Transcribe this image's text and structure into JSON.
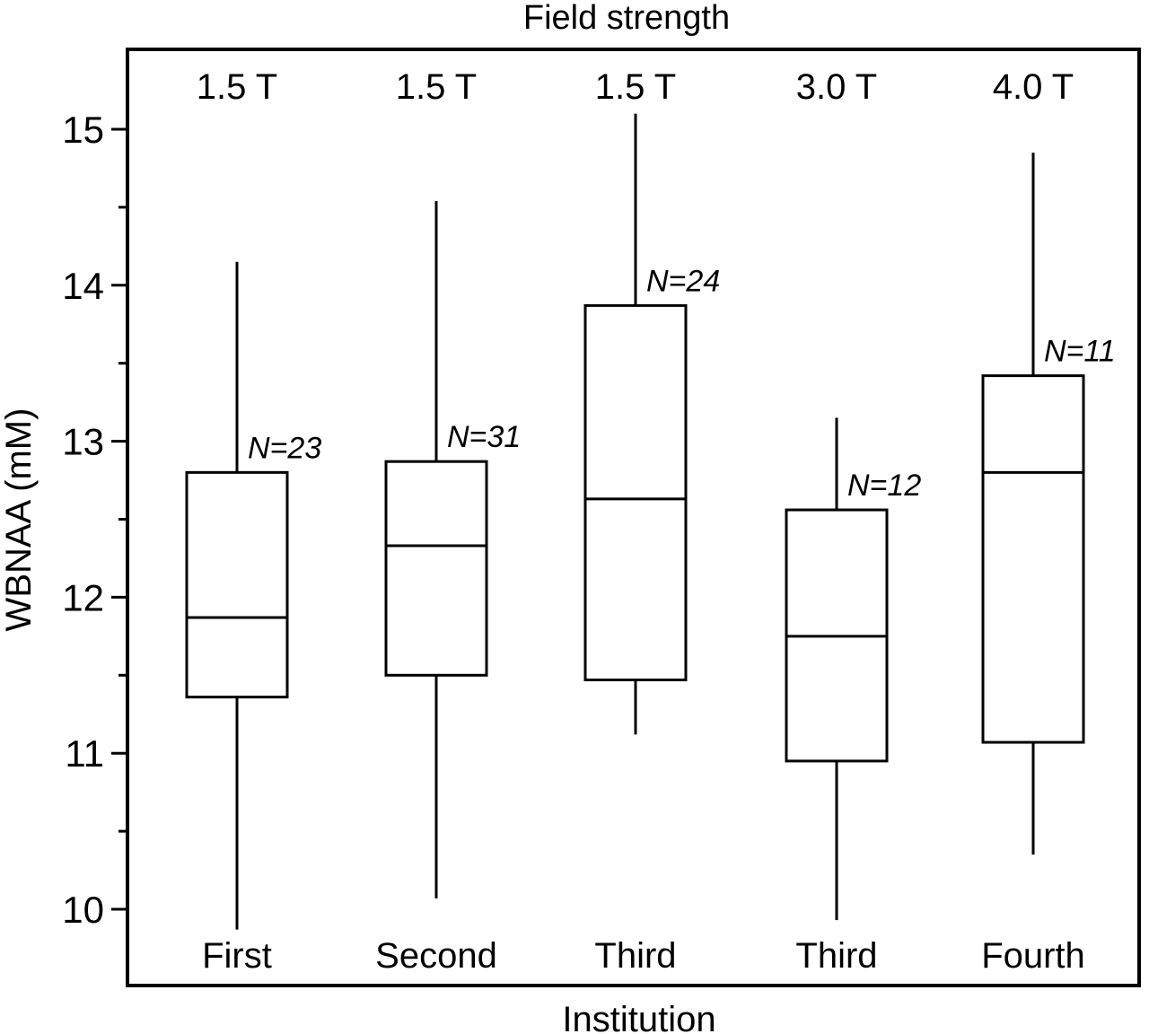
{
  "chart_data": {
    "type": "box",
    "title": "Field strength",
    "xlabel": "Institution",
    "ylabel": "WBNAA (mM)",
    "ylim": [
      9.75,
      15.55
    ],
    "y_ticks_major": [
      10,
      11,
      12,
      13,
      14,
      15
    ],
    "y_ticks_minor": [
      10.5,
      11.5,
      12.5,
      13.5,
      14.5
    ],
    "grid": false,
    "boxes": [
      {
        "category": "First",
        "field_strength": "1.5 T",
        "n_label": "N=23",
        "min": 9.87,
        "q1": 11.36,
        "median": 11.87,
        "q3": 12.8,
        "max": 14.15
      },
      {
        "category": "Second",
        "field_strength": "1.5 T",
        "n_label": "N=31",
        "min": 10.07,
        "q1": 11.5,
        "median": 12.33,
        "q3": 12.87,
        "max": 14.54
      },
      {
        "category": "Third",
        "field_strength": "1.5 T",
        "n_label": "N=24",
        "min": 11.12,
        "q1": 11.47,
        "median": 12.63,
        "q3": 13.87,
        "max": 15.1
      },
      {
        "category": "Third",
        "field_strength": "3.0 T",
        "n_label": "N=12",
        "min": 9.93,
        "q1": 10.95,
        "median": 11.75,
        "q3": 12.56,
        "max": 13.15
      },
      {
        "category": "Fourth",
        "field_strength": "4.0 T",
        "n_label": "N=11",
        "min": 10.35,
        "q1": 11.07,
        "median": 12.8,
        "q3": 13.42,
        "max": 14.85
      }
    ]
  }
}
